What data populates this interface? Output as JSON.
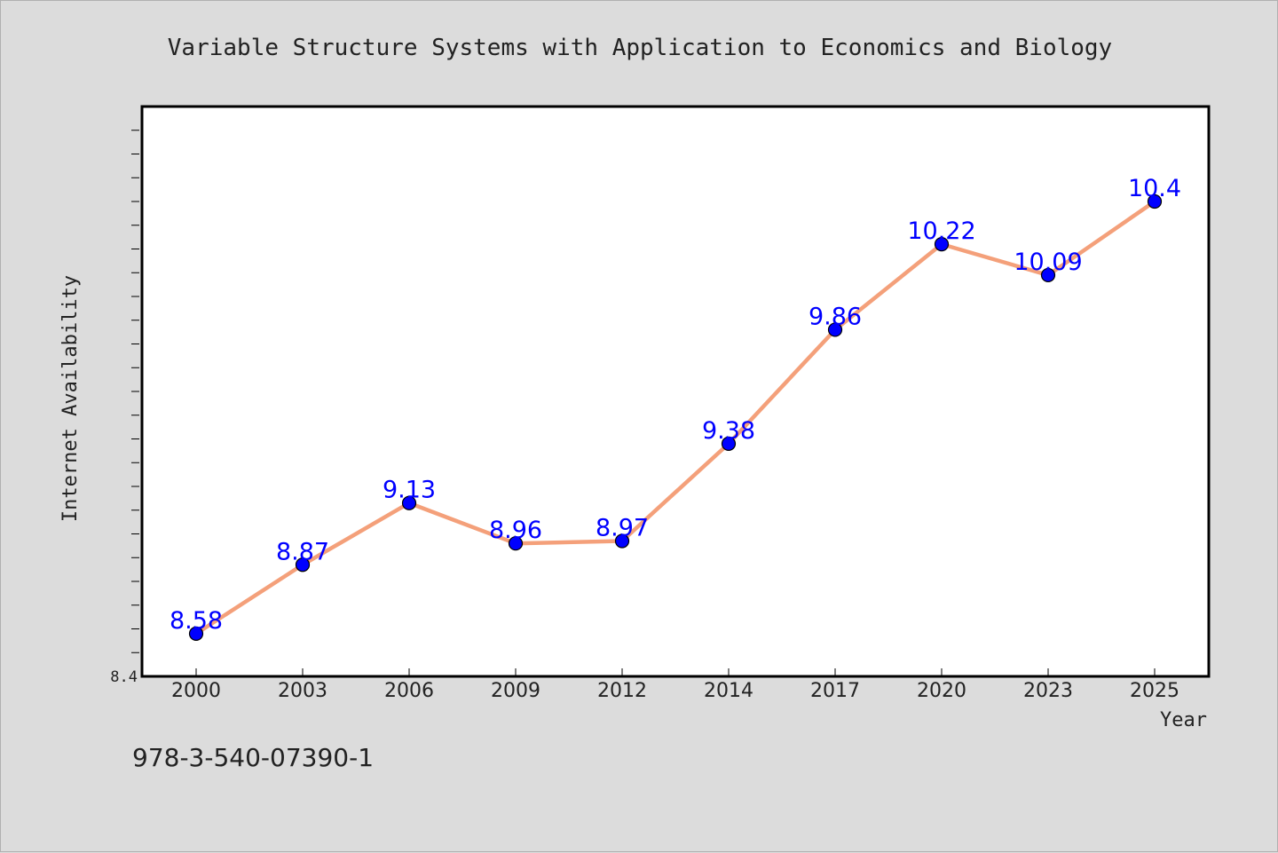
{
  "chart_data": {
    "type": "line",
    "title": "Variable Structure Systems with Application to Economics and Biology",
    "xlabel": "Year",
    "ylabel": "Internet Availability",
    "categories": [
      "2000",
      "2003",
      "2006",
      "2009",
      "2012",
      "2014",
      "2017",
      "2020",
      "2023",
      "2025"
    ],
    "series": [
      {
        "values": [
          8.58,
          8.87,
          9.13,
          8.96,
          8.97,
          9.38,
          9.86,
          10.22,
          10.09,
          10.4
        ],
        "data_labels": [
          "8.58",
          "8.87",
          "9.13",
          "8.96",
          "8.97",
          "9.38",
          "9.86",
          "10.22",
          "10.09",
          "10.4"
        ],
        "line_color": "#f4a07a",
        "marker_color": "#0000ff",
        "label_color": "#0000ff"
      }
    ],
    "ylim": [
      8.4,
      10.8
    ],
    "ytick_labels": [
      "8.4"
    ],
    "grid": false,
    "legend": "none"
  },
  "footer_text": "978-3-540-07390-1",
  "colors": {
    "background": "#dcdcdc",
    "plot_background": "#ffffff",
    "axis": "#000000",
    "text": "#222222"
  }
}
